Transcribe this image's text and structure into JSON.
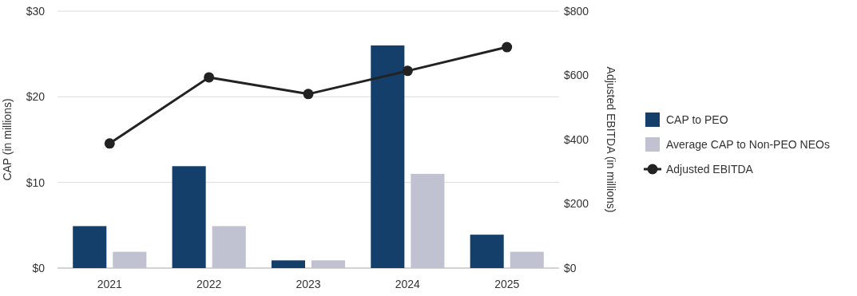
{
  "chart_data": {
    "type": "bar",
    "categories": [
      "2021",
      "2022",
      "2023",
      "2024",
      "2025"
    ],
    "series": [
      {
        "name": "CAP to PEO",
        "color": "#143f6b",
        "values": [
          4.9,
          11.9,
          0.9,
          26.0,
          3.9
        ]
      },
      {
        "name": "Average CAP to Non-PEO NEOs",
        "color": "#c0c1d1",
        "values": [
          1.9,
          4.9,
          0.9,
          11.0,
          1.9
        ]
      },
      {
        "name": "Adjusted EBITDA",
        "type": "line",
        "axis": "y2",
        "color": "#222222",
        "marker": "circle",
        "values": [
          388,
          594,
          542,
          614,
          688
        ]
      }
    ],
    "ylabel": "CAP (in millions)",
    "y2label": "Adjusted EBITDA (in millions)",
    "ylim": [
      0,
      30
    ],
    "yticks": [
      {
        "value": 0,
        "label": "$0"
      },
      {
        "value": 10,
        "label": "$10"
      },
      {
        "value": 20,
        "label": "$20"
      },
      {
        "value": 30,
        "label": "$30"
      }
    ],
    "y2lim": [
      0,
      800
    ],
    "y2ticks": [
      {
        "value": 0,
        "label": "$0"
      },
      {
        "value": 200,
        "label": "$200"
      },
      {
        "value": 400,
        "label": "$400"
      },
      {
        "value": 600,
        "label": "$600"
      },
      {
        "value": 800,
        "label": "$800"
      }
    ],
    "grid": "y",
    "legend": "right"
  }
}
